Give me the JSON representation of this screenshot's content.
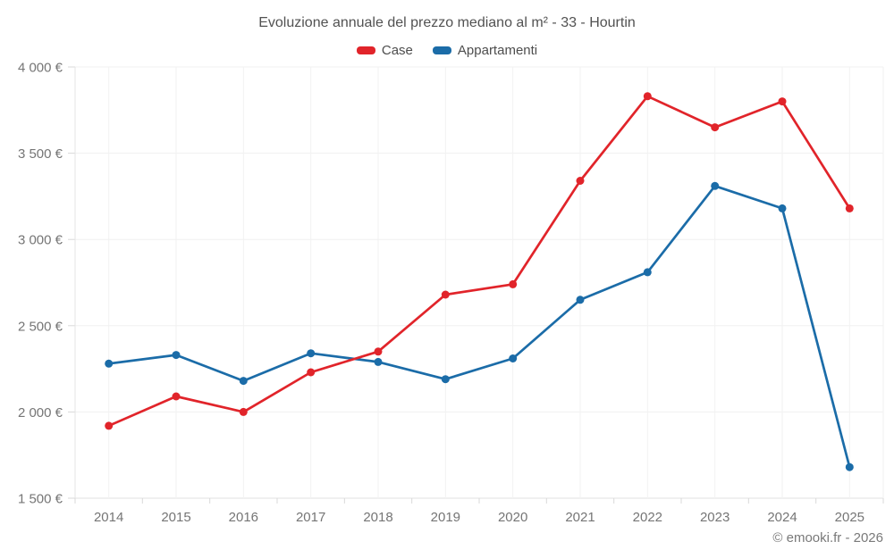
{
  "page": {
    "footer": "© emooki.fr - 2026"
  },
  "chart_data": {
    "type": "line",
    "title": "Evoluzione annuale del prezzo mediano al m² - 33 - Hourtin",
    "categories": [
      "2014",
      "2015",
      "2016",
      "2017",
      "2018",
      "2019",
      "2020",
      "2021",
      "2022",
      "2023",
      "2024",
      "2025"
    ],
    "series": [
      {
        "name": "Case",
        "color": "#e1242a",
        "values": [
          1920,
          2090,
          2000,
          2230,
          2350,
          2680,
          2740,
          3340,
          3830,
          3650,
          3800,
          3180
        ]
      },
      {
        "name": "Appartamenti",
        "color": "#1b6ca8",
        "values": [
          2280,
          2330,
          2180,
          2340,
          2290,
          2190,
          2310,
          2650,
          2810,
          3310,
          3180,
          1680
        ]
      }
    ],
    "y_ticks": [
      "4 000 €",
      "3 500 €",
      "3 000 €",
      "2 500 €",
      "2 000 €",
      "1 500 €"
    ],
    "ylim": [
      1500,
      4000
    ],
    "y_step": 500,
    "unit": "€",
    "grid": true,
    "legend_position": "top",
    "point_style": "circle"
  }
}
